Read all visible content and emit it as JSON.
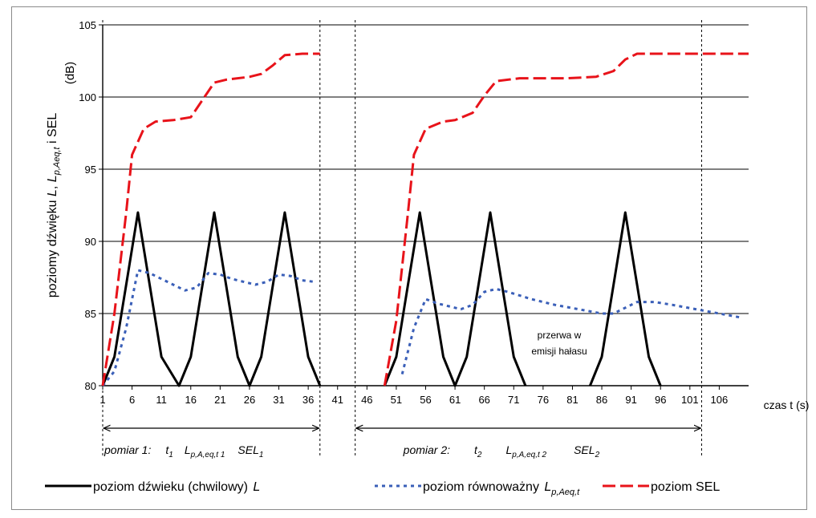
{
  "chart_data": {
    "type": "line",
    "y_axis": {
      "min": 80,
      "max": 105,
      "ticks": [
        80,
        85,
        90,
        95,
        100,
        105
      ],
      "tick_labels": [
        "80",
        "85",
        "90",
        "95",
        "100",
        "105"
      ],
      "label_parts": [
        "poziomy dźwięku ",
        "L",
        ", ",
        "L",
        "p,Aeq,t",
        " i SEL"
      ],
      "unit": "(dB)",
      "grid": true
    },
    "x_axis": {
      "min": 1,
      "max": 111,
      "ticks": [
        1,
        6,
        11,
        16,
        21,
        26,
        31,
        36,
        41,
        46,
        51,
        56,
        61,
        66,
        71,
        76,
        81,
        86,
        91,
        96,
        101,
        106
      ],
      "tick_labels": [
        "1",
        "6",
        "11",
        "16",
        "21",
        "26",
        "31",
        "36",
        "41",
        "46",
        "51",
        "56",
        "61",
        "66",
        "71",
        "76",
        "81",
        "86",
        "91",
        "96",
        "101",
        "106"
      ],
      "label": "czas  t  (s)"
    },
    "series": [
      {
        "name": "poziom dźwieku (chwilowy)",
        "name_symbol": "L",
        "color": "#000000",
        "style": "solid",
        "segments": [
          [
            [
              1,
              80
            ],
            [
              3,
              82
            ],
            [
              5,
              87
            ],
            [
              7,
              92
            ],
            [
              9,
              87
            ],
            [
              11,
              82
            ],
            [
              14,
              80
            ],
            [
              16,
              82
            ],
            [
              18,
              87
            ],
            [
              20,
              92
            ],
            [
              22,
              87
            ],
            [
              24,
              82
            ],
            [
              26,
              80
            ],
            [
              28,
              82
            ],
            [
              30,
              87
            ],
            [
              32,
              92
            ],
            [
              34,
              87
            ],
            [
              36,
              82
            ],
            [
              38,
              80
            ]
          ],
          [
            [
              49,
              80
            ],
            [
              51,
              82
            ],
            [
              53,
              87
            ],
            [
              55,
              92
            ],
            [
              57,
              87
            ],
            [
              59,
              82
            ],
            [
              61,
              80
            ],
            [
              63,
              82
            ],
            [
              65,
              87
            ],
            [
              67,
              92
            ],
            [
              69,
              87
            ],
            [
              71,
              82
            ],
            [
              73,
              80
            ]
          ],
          [
            [
              84,
              80
            ],
            [
              86,
              82
            ],
            [
              88,
              87
            ],
            [
              90,
              92
            ],
            [
              92,
              87
            ],
            [
              94,
              82
            ],
            [
              96,
              80
            ]
          ]
        ]
      },
      {
        "name": "poziom równoważny",
        "name_symbol": "L",
        "name_sub": "p,Aeq,t",
        "color": "#3a5fb8",
        "style": "dotted",
        "segments": [
          [
            [
              1,
              80
            ],
            [
              3,
              81
            ],
            [
              5,
              84
            ],
            [
              7,
              88
            ],
            [
              9,
              87.8
            ],
            [
              11,
              87.4
            ],
            [
              13,
              87
            ],
            [
              15,
              86.6
            ],
            [
              17,
              86.8
            ],
            [
              19,
              87.8
            ],
            [
              21,
              87.7
            ],
            [
              23,
              87.4
            ],
            [
              25,
              87.2
            ],
            [
              27,
              87
            ],
            [
              29,
              87.2
            ],
            [
              31,
              87.7
            ],
            [
              33,
              87.6
            ],
            [
              35,
              87.3
            ],
            [
              37,
              87.2
            ]
          ],
          [
            [
              52,
              80.8
            ],
            [
              54,
              84
            ],
            [
              56,
              86
            ],
            [
              58,
              85.7
            ],
            [
              60,
              85.5
            ],
            [
              62,
              85.3
            ],
            [
              64,
              85.6
            ],
            [
              66,
              86.5
            ],
            [
              68,
              86.7
            ],
            [
              70,
              86.5
            ],
            [
              74,
              86
            ],
            [
              78,
              85.6
            ],
            [
              82,
              85.3
            ],
            [
              86,
              85
            ],
            [
              88,
              85
            ],
            [
              90,
              85.4
            ],
            [
              92,
              85.8
            ],
            [
              95,
              85.8
            ],
            [
              98,
              85.6
            ],
            [
              102,
              85.3
            ],
            [
              106,
              85
            ],
            [
              110,
              84.7
            ]
          ]
        ]
      },
      {
        "name": "poziom  SEL",
        "color": "#e8131a",
        "style": "dashed",
        "segments": [
          [
            [
              1,
              80
            ],
            [
              3,
              85
            ],
            [
              5,
              92
            ],
            [
              6,
              96
            ],
            [
              8,
              97.8
            ],
            [
              10,
              98.3
            ],
            [
              13,
              98.4
            ],
            [
              16,
              98.6
            ],
            [
              18,
              99.8
            ],
            [
              20,
              101
            ],
            [
              22,
              101.2
            ],
            [
              26,
              101.4
            ],
            [
              28,
              101.6
            ],
            [
              30,
              102.2
            ],
            [
              32,
              102.9
            ],
            [
              35,
              103
            ],
            [
              38,
              103
            ]
          ],
          [
            [
              49,
              80
            ],
            [
              51,
              84.5
            ],
            [
              53,
              92
            ],
            [
              54,
              96
            ],
            [
              56,
              97.8
            ],
            [
              59,
              98.3
            ],
            [
              61,
              98.4
            ],
            [
              64,
              98.9
            ],
            [
              66,
              100.1
            ],
            [
              68,
              101.1
            ],
            [
              72,
              101.3
            ],
            [
              80,
              101.3
            ],
            [
              85,
              101.4
            ],
            [
              88,
              101.8
            ],
            [
              90,
              102.6
            ],
            [
              92,
              103
            ],
            [
              96,
              103
            ],
            [
              111,
              103
            ]
          ]
        ]
      }
    ],
    "dividers_x": [
      1,
      38,
      44,
      103
    ],
    "measurements": [
      {
        "from": 1,
        "to": 38,
        "label": "pomiar 1:",
        "t": "t",
        "t_sub": "1",
        "leq": "L",
        "leq_sub": "p,A,eq,t 1",
        "sel": "SEL",
        "sel_sub": "1"
      },
      {
        "from": 44,
        "to": 103,
        "label": "pomiar 2:",
        "t": "t",
        "t_sub": "2",
        "leq": "L",
        "leq_sub": "p,A,eq,t 2",
        "sel": "SEL",
        "sel_sub": "2"
      }
    ],
    "annotation": {
      "lines": [
        "przerwa  w",
        "emisji hałasu"
      ]
    },
    "legend_position": "bottom"
  }
}
